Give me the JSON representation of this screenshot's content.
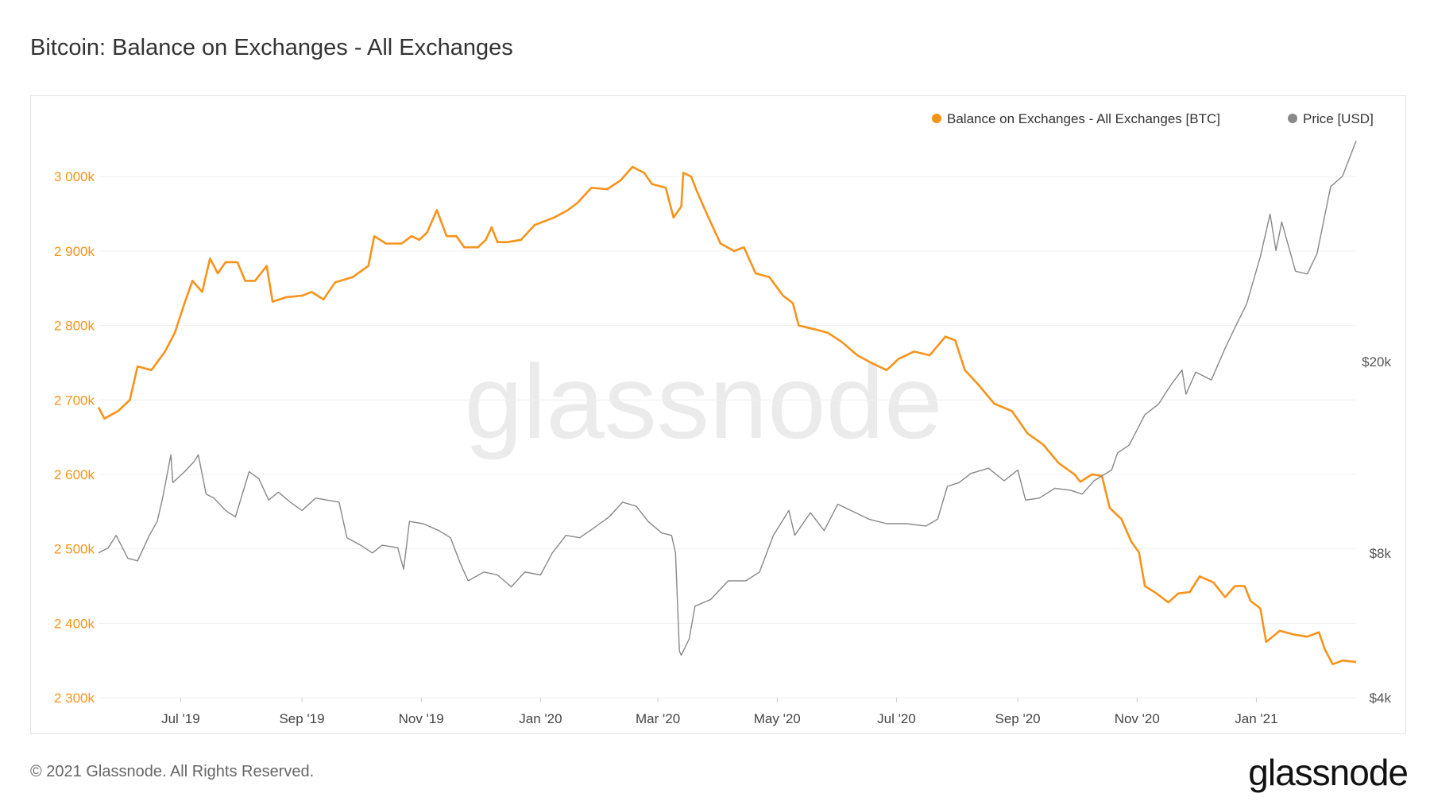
{
  "page": {
    "title": "Bitcoin: Balance on Exchanges - All Exchanges",
    "footer": "© 2021 Glassnode. All Rights Reserved.",
    "brand": "glassnode",
    "watermark": "glassnode"
  },
  "chart_data": {
    "type": "line",
    "title": "Bitcoin: Balance on Exchanges - All Exchanges",
    "x_range": [
      "2019-05-20",
      "2021-02-21"
    ],
    "x_ticks": [
      {
        "date": "2019-07-01",
        "label": "Jul '19"
      },
      {
        "date": "2019-09-01",
        "label": "Sep '19"
      },
      {
        "date": "2019-11-01",
        "label": "Nov '19"
      },
      {
        "date": "2020-01-01",
        "label": "Jan '20"
      },
      {
        "date": "2020-03-01",
        "label": "Mar '20"
      },
      {
        "date": "2020-05-01",
        "label": "May '20"
      },
      {
        "date": "2020-07-01",
        "label": "Jul '20"
      },
      {
        "date": "2020-09-01",
        "label": "Sep '20"
      },
      {
        "date": "2020-11-01",
        "label": "Nov '20"
      },
      {
        "date": "2021-01-01",
        "label": "Jan '21"
      }
    ],
    "y_left": {
      "range": [
        2300000,
        3060000
      ],
      "ticks": [
        2300000,
        2400000,
        2500000,
        2600000,
        2700000,
        2800000,
        2900000,
        3000000
      ],
      "tick_labels": [
        "2 300k",
        "2 400k",
        "2 500k",
        "2 600k",
        "2 700k",
        "2 800k",
        "2 900k",
        "3 000k"
      ],
      "color": "#f7931a"
    },
    "y_right": {
      "scale": "log",
      "range": [
        4000,
        60000
      ],
      "ticks": [
        4000,
        8000,
        20000
      ],
      "tick_labels": [
        "$4k",
        "$8k",
        "$20k"
      ]
    },
    "legend": {
      "position": "top-right"
    },
    "grid": true,
    "series": [
      {
        "name": "Balance on Exchanges - All Exchanges [BTC]",
        "axis": "left",
        "color": "#f7931a",
        "points": [
          [
            "2019-05-20",
            2690000
          ],
          [
            "2019-05-23",
            2675000
          ],
          [
            "2019-05-30",
            2685000
          ],
          [
            "2019-06-05",
            2700000
          ],
          [
            "2019-06-09",
            2745000
          ],
          [
            "2019-06-16",
            2740000
          ],
          [
            "2019-06-23",
            2765000
          ],
          [
            "2019-06-28",
            2790000
          ],
          [
            "2019-07-03",
            2830000
          ],
          [
            "2019-07-07",
            2860000
          ],
          [
            "2019-07-12",
            2845000
          ],
          [
            "2019-07-16",
            2890000
          ],
          [
            "2019-07-20",
            2870000
          ],
          [
            "2019-07-24",
            2885000
          ],
          [
            "2019-07-30",
            2885000
          ],
          [
            "2019-08-03",
            2860000
          ],
          [
            "2019-08-08",
            2860000
          ],
          [
            "2019-08-14",
            2880000
          ],
          [
            "2019-08-17",
            2832000
          ],
          [
            "2019-08-24",
            2838000
          ],
          [
            "2019-09-01",
            2840000
          ],
          [
            "2019-09-06",
            2845000
          ],
          [
            "2019-09-12",
            2835000
          ],
          [
            "2019-09-18",
            2858000
          ],
          [
            "2019-09-27",
            2865000
          ],
          [
            "2019-10-05",
            2880000
          ],
          [
            "2019-10-08",
            2920000
          ],
          [
            "2019-10-14",
            2910000
          ],
          [
            "2019-10-22",
            2910000
          ],
          [
            "2019-10-27",
            2920000
          ],
          [
            "2019-10-31",
            2915000
          ],
          [
            "2019-11-04",
            2925000
          ],
          [
            "2019-11-09",
            2955000
          ],
          [
            "2019-11-14",
            2920000
          ],
          [
            "2019-11-19",
            2920000
          ],
          [
            "2019-11-23",
            2905000
          ],
          [
            "2019-11-30",
            2905000
          ],
          [
            "2019-12-04",
            2915000
          ],
          [
            "2019-12-07",
            2932000
          ],
          [
            "2019-12-10",
            2912000
          ],
          [
            "2019-12-15",
            2912000
          ],
          [
            "2019-12-22",
            2915000
          ],
          [
            "2019-12-29",
            2935000
          ],
          [
            "2020-01-08",
            2945000
          ],
          [
            "2020-01-15",
            2955000
          ],
          [
            "2020-01-20",
            2965000
          ],
          [
            "2020-01-27",
            2985000
          ],
          [
            "2020-02-04",
            2983000
          ],
          [
            "2020-02-11",
            2995000
          ],
          [
            "2020-02-17",
            3013000
          ],
          [
            "2020-02-23",
            3005000
          ],
          [
            "2020-02-27",
            2990000
          ],
          [
            "2020-03-05",
            2985000
          ],
          [
            "2020-03-09",
            2945000
          ],
          [
            "2020-03-13",
            2960000
          ],
          [
            "2020-03-14",
            3005000
          ],
          [
            "2020-03-18",
            3000000
          ],
          [
            "2020-03-21",
            2980000
          ],
          [
            "2020-03-26",
            2950000
          ],
          [
            "2020-04-02",
            2910000
          ],
          [
            "2020-04-09",
            2900000
          ],
          [
            "2020-04-14",
            2905000
          ],
          [
            "2020-04-20",
            2870000
          ],
          [
            "2020-04-27",
            2865000
          ],
          [
            "2020-05-04",
            2840000
          ],
          [
            "2020-05-09",
            2830000
          ],
          [
            "2020-05-12",
            2800000
          ],
          [
            "2020-05-20",
            2795000
          ],
          [
            "2020-05-27",
            2790000
          ],
          [
            "2020-06-03",
            2778000
          ],
          [
            "2020-06-11",
            2760000
          ],
          [
            "2020-06-18",
            2750000
          ],
          [
            "2020-06-26",
            2740000
          ],
          [
            "2020-07-02",
            2755000
          ],
          [
            "2020-07-10",
            2765000
          ],
          [
            "2020-07-18",
            2760000
          ],
          [
            "2020-07-26",
            2785000
          ],
          [
            "2020-07-31",
            2780000
          ],
          [
            "2020-08-05",
            2740000
          ],
          [
            "2020-08-12",
            2720000
          ],
          [
            "2020-08-20",
            2695000
          ],
          [
            "2020-08-29",
            2685000
          ],
          [
            "2020-09-06",
            2655000
          ],
          [
            "2020-09-14",
            2640000
          ],
          [
            "2020-09-22",
            2615000
          ],
          [
            "2020-09-30",
            2600000
          ],
          [
            "2020-10-03",
            2590000
          ],
          [
            "2020-10-09",
            2600000
          ],
          [
            "2020-10-14",
            2598000
          ],
          [
            "2020-10-18",
            2555000
          ],
          [
            "2020-10-24",
            2540000
          ],
          [
            "2020-10-29",
            2510000
          ],
          [
            "2020-11-02",
            2495000
          ],
          [
            "2020-11-05",
            2450000
          ],
          [
            "2020-11-11",
            2440000
          ],
          [
            "2020-11-17",
            2428000
          ],
          [
            "2020-11-22",
            2440000
          ],
          [
            "2020-11-28",
            2442000
          ],
          [
            "2020-12-03",
            2463000
          ],
          [
            "2020-12-10",
            2455000
          ],
          [
            "2020-12-16",
            2435000
          ],
          [
            "2020-12-21",
            2450000
          ],
          [
            "2020-12-26",
            2450000
          ],
          [
            "2020-12-29",
            2430000
          ],
          [
            "2021-01-03",
            2420000
          ],
          [
            "2021-01-06",
            2375000
          ],
          [
            "2021-01-13",
            2390000
          ],
          [
            "2021-01-20",
            2385000
          ],
          [
            "2021-01-27",
            2382000
          ],
          [
            "2021-02-02",
            2388000
          ],
          [
            "2021-02-05",
            2365000
          ],
          [
            "2021-02-09",
            2345000
          ],
          [
            "2021-02-14",
            2350000
          ],
          [
            "2021-02-21",
            2348000
          ]
        ]
      },
      {
        "name": "Price [USD]",
        "axis": "right",
        "color": "#888888",
        "points": [
          [
            "2019-05-20",
            8000
          ],
          [
            "2019-05-25",
            8200
          ],
          [
            "2019-05-29",
            8700
          ],
          [
            "2019-06-04",
            7800
          ],
          [
            "2019-06-09",
            7700
          ],
          [
            "2019-06-15",
            8700
          ],
          [
            "2019-06-19",
            9300
          ],
          [
            "2019-06-22",
            10500
          ],
          [
            "2019-06-26",
            12800
          ],
          [
            "2019-06-27",
            11200
          ],
          [
            "2019-07-03",
            11800
          ],
          [
            "2019-07-08",
            12400
          ],
          [
            "2019-07-10",
            12800
          ],
          [
            "2019-07-14",
            10600
          ],
          [
            "2019-07-18",
            10400
          ],
          [
            "2019-07-24",
            9800
          ],
          [
            "2019-07-29",
            9500
          ],
          [
            "2019-08-05",
            11800
          ],
          [
            "2019-08-10",
            11400
          ],
          [
            "2019-08-15",
            10300
          ],
          [
            "2019-08-20",
            10700
          ],
          [
            "2019-08-26",
            10200
          ],
          [
            "2019-09-01",
            9800
          ],
          [
            "2019-09-08",
            10400
          ],
          [
            "2019-09-14",
            10300
          ],
          [
            "2019-09-20",
            10200
          ],
          [
            "2019-09-24",
            8600
          ],
          [
            "2019-10-01",
            8300
          ],
          [
            "2019-10-07",
            8000
          ],
          [
            "2019-10-12",
            8300
          ],
          [
            "2019-10-20",
            8200
          ],
          [
            "2019-10-23",
            7400
          ],
          [
            "2019-10-26",
            9300
          ],
          [
            "2019-11-02",
            9200
          ],
          [
            "2019-11-10",
            8900
          ],
          [
            "2019-11-16",
            8600
          ],
          [
            "2019-11-21",
            7600
          ],
          [
            "2019-11-25",
            7000
          ],
          [
            "2019-12-03",
            7300
          ],
          [
            "2019-12-10",
            7200
          ],
          [
            "2019-12-17",
            6800
          ],
          [
            "2019-12-24",
            7300
          ],
          [
            "2020-01-01",
            7200
          ],
          [
            "2020-01-07",
            8000
          ],
          [
            "2020-01-14",
            8700
          ],
          [
            "2020-01-21",
            8600
          ],
          [
            "2020-01-28",
            9000
          ],
          [
            "2020-02-05",
            9500
          ],
          [
            "2020-02-12",
            10200
          ],
          [
            "2020-02-19",
            10000
          ],
          [
            "2020-02-25",
            9300
          ],
          [
            "2020-03-03",
            8800
          ],
          [
            "2020-03-08",
            8700
          ],
          [
            "2020-03-10",
            8000
          ],
          [
            "2020-03-12",
            5000
          ],
          [
            "2020-03-13",
            4900
          ],
          [
            "2020-03-17",
            5300
          ],
          [
            "2020-03-20",
            6200
          ],
          [
            "2020-03-28",
            6400
          ],
          [
            "2020-04-06",
            7000
          ],
          [
            "2020-04-15",
            7000
          ],
          [
            "2020-04-22",
            7300
          ],
          [
            "2020-04-29",
            8700
          ],
          [
            "2020-05-07",
            9800
          ],
          [
            "2020-05-10",
            8700
          ],
          [
            "2020-05-18",
            9700
          ],
          [
            "2020-05-25",
            8900
          ],
          [
            "2020-06-01",
            10100
          ],
          [
            "2020-06-10",
            9700
          ],
          [
            "2020-06-17",
            9400
          ],
          [
            "2020-06-26",
            9200
          ],
          [
            "2020-07-06",
            9200
          ],
          [
            "2020-07-16",
            9100
          ],
          [
            "2020-07-22",
            9400
          ],
          [
            "2020-07-27",
            11000
          ],
          [
            "2020-08-02",
            11200
          ],
          [
            "2020-08-08",
            11700
          ],
          [
            "2020-08-17",
            12000
          ],
          [
            "2020-08-25",
            11300
          ],
          [
            "2020-09-01",
            11900
          ],
          [
            "2020-09-05",
            10300
          ],
          [
            "2020-09-12",
            10400
          ],
          [
            "2020-09-20",
            10900
          ],
          [
            "2020-09-28",
            10800
          ],
          [
            "2020-10-04",
            10600
          ],
          [
            "2020-10-10",
            11300
          ],
          [
            "2020-10-19",
            11900
          ],
          [
            "2020-10-22",
            12900
          ],
          [
            "2020-10-28",
            13400
          ],
          [
            "2020-11-05",
            15500
          ],
          [
            "2020-11-12",
            16300
          ],
          [
            "2020-11-18",
            17800
          ],
          [
            "2020-11-24",
            19200
          ],
          [
            "2020-11-26",
            17100
          ],
          [
            "2020-12-01",
            19000
          ],
          [
            "2020-12-09",
            18300
          ],
          [
            "2020-12-16",
            21300
          ],
          [
            "2020-12-21",
            23500
          ],
          [
            "2020-12-27",
            26300
          ],
          [
            "2021-01-03",
            33000
          ],
          [
            "2021-01-08",
            40500
          ],
          [
            "2021-01-11",
            34000
          ],
          [
            "2021-01-14",
            39000
          ],
          [
            "2021-01-21",
            30800
          ],
          [
            "2021-01-27",
            30400
          ],
          [
            "2021-02-01",
            33500
          ],
          [
            "2021-02-08",
            46200
          ],
          [
            "2021-02-14",
            48500
          ],
          [
            "2021-02-21",
            57500
          ]
        ]
      }
    ]
  }
}
